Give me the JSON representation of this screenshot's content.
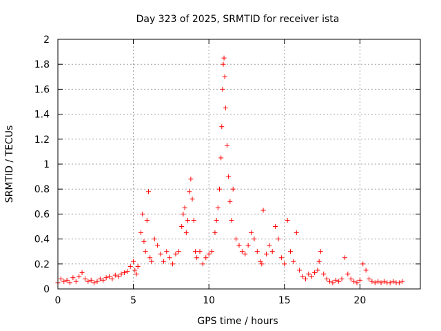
{
  "chart_data": {
    "type": "scatter",
    "title": "Day 323 of 2025, SRMTID for receiver ista",
    "xlabel": "GPS time / hours",
    "ylabel": "SRMTID / TECUs",
    "xlim": [
      0,
      24
    ],
    "ylim": [
      0,
      2
    ],
    "xticks": [
      0,
      5,
      10,
      15,
      20
    ],
    "yticks": [
      0,
      0.2,
      0.4,
      0.6,
      0.8,
      1,
      1.2,
      1.4,
      1.6,
      1.8,
      2
    ],
    "xtick_labels": [
      "0",
      "5",
      "10",
      "15",
      "20"
    ],
    "ytick_labels": [
      "0",
      "0.2",
      "0.4",
      "0.6",
      "0.8",
      "1",
      "1.2",
      "1.4",
      "1.6",
      "1.8",
      "2"
    ],
    "grid": true,
    "marker": "+",
    "marker_color": "#ff0000",
    "series": [
      {
        "name": "SRMTID",
        "x": [
          0.0,
          0.2,
          0.4,
          0.6,
          0.8,
          1.0,
          1.2,
          1.4,
          1.6,
          1.8,
          2.0,
          2.2,
          2.4,
          2.6,
          2.8,
          3.0,
          3.2,
          3.4,
          3.6,
          3.8,
          4.0,
          4.2,
          4.4,
          4.6,
          4.8,
          5.0,
          5.1,
          5.2,
          5.3,
          5.5,
          5.6,
          5.7,
          5.8,
          5.9,
          6.0,
          6.1,
          6.2,
          6.4,
          6.6,
          6.8,
          7.0,
          7.2,
          7.4,
          7.6,
          7.8,
          8.0,
          8.2,
          8.3,
          8.4,
          8.5,
          8.6,
          8.7,
          8.8,
          8.9,
          9.0,
          9.1,
          9.2,
          9.4,
          9.6,
          9.8,
          10.0,
          10.2,
          10.4,
          10.5,
          10.6,
          10.7,
          10.8,
          10.85,
          10.9,
          10.95,
          11.0,
          11.05,
          11.1,
          11.2,
          11.3,
          11.4,
          11.5,
          11.6,
          11.8,
          12.0,
          12.2,
          12.4,
          12.6,
          12.8,
          13.0,
          13.2,
          13.4,
          13.5,
          13.6,
          13.8,
          14.0,
          14.2,
          14.4,
          14.6,
          14.8,
          15.0,
          15.2,
          15.4,
          15.6,
          15.8,
          16.0,
          16.2,
          16.4,
          16.6,
          16.8,
          17.0,
          17.2,
          17.3,
          17.4,
          17.6,
          17.8,
          18.0,
          18.2,
          18.4,
          18.6,
          18.8,
          19.0,
          19.2,
          19.4,
          19.6,
          19.8,
          20.0,
          20.2,
          20.4,
          20.6,
          20.8,
          21.0,
          21.2,
          21.4,
          21.6,
          21.8,
          22.0,
          22.2,
          22.4,
          22.6,
          22.8
        ],
        "values": [
          0.05,
          0.08,
          0.06,
          0.07,
          0.05,
          0.09,
          0.06,
          0.1,
          0.13,
          0.08,
          0.06,
          0.07,
          0.05,
          0.06,
          0.08,
          0.07,
          0.09,
          0.1,
          0.08,
          0.11,
          0.1,
          0.12,
          0.13,
          0.14,
          0.18,
          0.22,
          0.15,
          0.12,
          0.18,
          0.45,
          0.6,
          0.38,
          0.3,
          0.55,
          0.78,
          0.25,
          0.22,
          0.4,
          0.35,
          0.28,
          0.22,
          0.3,
          0.25,
          0.2,
          0.28,
          0.3,
          0.5,
          0.6,
          0.65,
          0.45,
          0.55,
          0.78,
          0.88,
          0.72,
          0.55,
          0.3,
          0.25,
          0.3,
          0.2,
          0.25,
          0.28,
          0.3,
          0.45,
          0.55,
          0.65,
          0.8,
          1.05,
          1.3,
          1.6,
          1.8,
          1.85,
          1.7,
          1.45,
          1.15,
          0.9,
          0.7,
          0.55,
          0.8,
          0.4,
          0.35,
          0.3,
          0.28,
          0.35,
          0.45,
          0.4,
          0.3,
          0.22,
          0.2,
          0.63,
          0.28,
          0.35,
          0.3,
          0.5,
          0.4,
          0.25,
          0.2,
          0.55,
          0.3,
          0.22,
          0.45,
          0.15,
          0.1,
          0.08,
          0.12,
          0.1,
          0.13,
          0.15,
          0.22,
          0.3,
          0.12,
          0.08,
          0.06,
          0.05,
          0.07,
          0.06,
          0.08,
          0.25,
          0.12,
          0.08,
          0.06,
          0.05,
          0.07,
          0.2,
          0.15,
          0.08,
          0.06,
          0.05,
          0.06,
          0.05,
          0.06,
          0.05,
          0.05,
          0.06,
          0.05,
          0.05,
          0.06
        ]
      }
    ]
  }
}
